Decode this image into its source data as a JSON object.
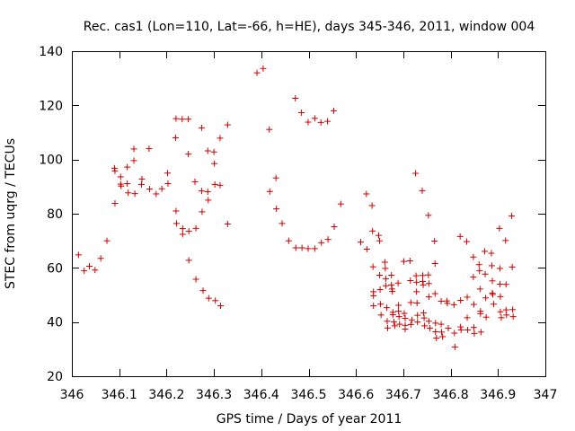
{
  "chart_data": {
    "type": "scatter",
    "title": "Rec. cas1 (Lon=110, Lat=-66, h=HE), days 345-346, 2011, window 004",
    "xlabel": "GPS time / Days of year 2011",
    "ylabel": "STEC from uqrg / TECUs",
    "xlim": [
      346,
      347
    ],
    "ylim": [
      20,
      140
    ],
    "x_tick_labels": [
      "346",
      "346.1",
      "346.2",
      "346.3",
      "346.4",
      "346.5",
      "346.6",
      "346.7",
      "346.8",
      "346.9",
      "347"
    ],
    "y_tick_labels": [
      "20",
      "40",
      "60",
      "80",
      "100",
      "120",
      "140"
    ],
    "grid": false,
    "marker": "+",
    "color": "#cc0000",
    "points": [
      [
        346.014,
        64.8
      ],
      [
        346.026,
        58.9
      ],
      [
        346.037,
        60.6
      ],
      [
        346.049,
        59.2
      ],
      [
        346.061,
        63.5
      ],
      [
        346.074,
        70.0
      ],
      [
        346.09,
        96.8
      ],
      [
        346.091,
        95.8
      ],
      [
        346.091,
        83.8
      ],
      [
        346.103,
        93.6
      ],
      [
        346.103,
        90.9
      ],
      [
        346.104,
        90.2
      ],
      [
        346.117,
        97.2
      ],
      [
        346.117,
        91.1
      ],
      [
        346.119,
        87.7
      ],
      [
        346.131,
        103.9
      ],
      [
        346.131,
        99.6
      ],
      [
        346.133,
        87.4
      ],
      [
        346.147,
        90.8
      ],
      [
        346.148,
        92.8
      ],
      [
        346.163,
        104.0
      ],
      [
        346.164,
        89.1
      ],
      [
        346.178,
        87.3
      ],
      [
        346.19,
        89.2
      ],
      [
        346.202,
        95.0
      ],
      [
        346.203,
        91.1
      ],
      [
        346.219,
        108.0
      ],
      [
        346.22,
        115.1
      ],
      [
        346.22,
        81.0
      ],
      [
        346.221,
        76.4
      ],
      [
        346.233,
        114.9
      ],
      [
        346.234,
        74.5
      ],
      [
        346.234,
        72.4
      ],
      [
        346.246,
        114.9
      ],
      [
        346.246,
        102.0
      ],
      [
        346.247,
        73.5
      ],
      [
        346.247,
        62.8
      ],
      [
        346.26,
        91.8
      ],
      [
        346.262,
        74.6
      ],
      [
        346.262,
        55.8
      ],
      [
        346.274,
        111.7
      ],
      [
        346.274,
        88.4
      ],
      [
        346.275,
        80.7
      ],
      [
        346.277,
        51.6
      ],
      [
        346.287,
        103.2
      ],
      [
        346.287,
        88.1
      ],
      [
        346.288,
        85.0
      ],
      [
        346.289,
        48.8
      ],
      [
        346.3,
        102.8
      ],
      [
        346.301,
        98.5
      ],
      [
        346.302,
        90.8
      ],
      [
        346.303,
        47.9
      ],
      [
        346.313,
        107.9
      ],
      [
        346.313,
        90.5
      ],
      [
        346.314,
        46.0
      ],
      [
        346.329,
        112.8
      ],
      [
        346.329,
        76.2
      ],
      [
        346.391,
        132.0
      ],
      [
        346.404,
        133.6
      ],
      [
        346.417,
        111.1
      ],
      [
        346.418,
        88.2
      ],
      [
        346.431,
        93.2
      ],
      [
        346.432,
        81.8
      ],
      [
        346.444,
        76.4
      ],
      [
        346.458,
        70.0
      ],
      [
        346.472,
        122.6
      ],
      [
        346.473,
        67.4
      ],
      [
        346.485,
        117.3
      ],
      [
        346.486,
        67.4
      ],
      [
        346.499,
        113.8
      ],
      [
        346.499,
        67.1
      ],
      [
        346.513,
        115.2
      ],
      [
        346.513,
        67.1
      ],
      [
        346.526,
        113.7
      ],
      [
        346.527,
        69.3
      ],
      [
        346.54,
        114.1
      ],
      [
        346.541,
        70.5
      ],
      [
        346.553,
        118.0
      ],
      [
        346.554,
        75.2
      ],
      [
        346.568,
        83.6
      ],
      [
        346.61,
        69.5
      ],
      [
        346.622,
        87.3
      ],
      [
        346.623,
        66.9
      ],
      [
        346.634,
        83.0
      ],
      [
        346.635,
        73.6
      ],
      [
        346.636,
        60.4
      ],
      [
        346.637,
        51.2
      ],
      [
        346.637,
        49.7
      ],
      [
        346.637,
        46.0
      ],
      [
        346.648,
        72.0
      ],
      [
        346.65,
        70.0
      ],
      [
        346.65,
        57.3
      ],
      [
        346.651,
        52.0
      ],
      [
        346.652,
        46.6
      ],
      [
        346.653,
        42.6
      ],
      [
        346.661,
        62.1
      ],
      [
        346.662,
        59.8
      ],
      [
        346.663,
        56.0
      ],
      [
        346.663,
        53.4
      ],
      [
        346.665,
        45.3
      ],
      [
        346.666,
        40.3
      ],
      [
        346.667,
        37.8
      ],
      [
        346.675,
        57.3
      ],
      [
        346.675,
        53.7
      ],
      [
        346.676,
        52.2
      ],
      [
        346.677,
        51.3
      ],
      [
        346.678,
        43.6
      ],
      [
        346.678,
        42.7
      ],
      [
        346.68,
        40.1
      ],
      [
        346.682,
        38.6
      ],
      [
        346.689,
        54.4
      ],
      [
        346.69,
        46.2
      ],
      [
        346.69,
        44.0
      ],
      [
        346.691,
        42.0
      ],
      [
        346.692,
        39.2
      ],
      [
        346.701,
        62.4
      ],
      [
        346.702,
        43.2
      ],
      [
        346.704,
        41.4
      ],
      [
        346.704,
        38.8
      ],
      [
        346.704,
        37.4
      ],
      [
        346.714,
        62.6
      ],
      [
        346.715,
        55.3
      ],
      [
        346.716,
        47.2
      ],
      [
        346.716,
        39.1
      ],
      [
        346.718,
        40.8
      ],
      [
        346.726,
        94.9
      ],
      [
        346.727,
        57.1
      ],
      [
        346.728,
        54.7
      ],
      [
        346.728,
        51.2
      ],
      [
        346.729,
        47.0
      ],
      [
        346.73,
        42.5
      ],
      [
        346.73,
        40.0
      ],
      [
        346.74,
        88.5
      ],
      [
        346.741,
        57.2
      ],
      [
        346.741,
        55.0
      ],
      [
        346.742,
        53.7
      ],
      [
        346.743,
        43.4
      ],
      [
        346.744,
        41.5
      ],
      [
        346.745,
        38.6
      ],
      [
        346.753,
        79.4
      ],
      [
        346.753,
        57.4
      ],
      [
        346.754,
        54.2
      ],
      [
        346.754,
        49.3
      ],
      [
        346.754,
        40.3
      ],
      [
        346.756,
        37.7
      ],
      [
        346.766,
        69.9
      ],
      [
        346.767,
        61.6
      ],
      [
        346.767,
        50.5
      ],
      [
        346.768,
        39.6
      ],
      [
        346.768,
        36.4
      ],
      [
        346.77,
        34.1
      ],
      [
        346.78,
        47.7
      ],
      [
        346.78,
        39.2
      ],
      [
        346.781,
        36.3
      ],
      [
        346.783,
        34.6
      ],
      [
        346.792,
        47.8
      ],
      [
        346.793,
        46.9
      ],
      [
        346.795,
        37.7
      ],
      [
        346.807,
        46.4
      ],
      [
        346.808,
        35.9
      ],
      [
        346.809,
        30.8
      ],
      [
        346.82,
        71.6
      ],
      [
        346.821,
        48.0
      ],
      [
        346.821,
        38.2
      ],
      [
        346.822,
        37.1
      ],
      [
        346.834,
        69.7
      ],
      [
        346.835,
        49.2
      ],
      [
        346.835,
        41.6
      ],
      [
        346.836,
        37.1
      ],
      [
        346.848,
        64.0
      ],
      [
        346.848,
        56.6
      ],
      [
        346.849,
        46.5
      ],
      [
        346.849,
        38.0
      ],
      [
        346.85,
        35.8
      ],
      [
        346.86,
        61.2
      ],
      [
        346.861,
        58.9
      ],
      [
        346.862,
        52.2
      ],
      [
        346.863,
        44.0
      ],
      [
        346.863,
        43.1
      ],
      [
        346.864,
        36.3
      ],
      [
        346.872,
        66.1
      ],
      [
        346.873,
        57.7
      ],
      [
        346.874,
        48.9
      ],
      [
        346.875,
        41.8
      ],
      [
        346.886,
        65.4
      ],
      [
        346.887,
        60.8
      ],
      [
        346.888,
        55.2
      ],
      [
        346.888,
        50.7
      ],
      [
        346.889,
        50.2
      ],
      [
        346.891,
        46.6
      ],
      [
        346.903,
        74.6
      ],
      [
        346.904,
        59.8
      ],
      [
        346.904,
        54.0
      ],
      [
        346.905,
        49.4
      ],
      [
        346.905,
        43.8
      ],
      [
        346.907,
        41.6
      ],
      [
        346.916,
        70.1
      ],
      [
        346.917,
        53.9
      ],
      [
        346.917,
        44.5
      ],
      [
        346.918,
        42.6
      ],
      [
        346.929,
        79.2
      ],
      [
        346.93,
        60.3
      ],
      [
        346.931,
        44.6
      ],
      [
        346.932,
        42.0
      ]
    ]
  }
}
